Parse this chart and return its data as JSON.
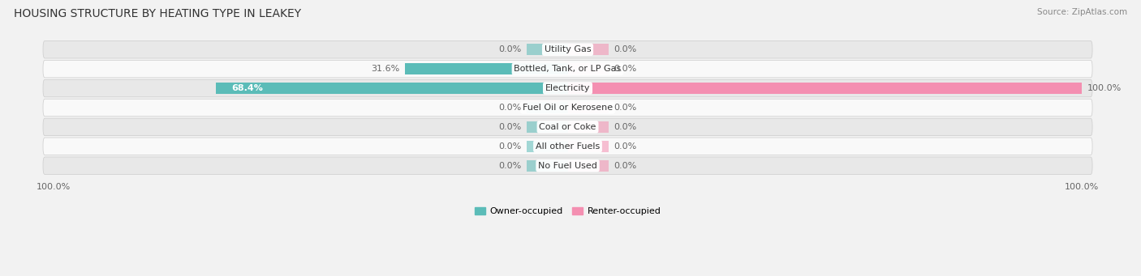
{
  "title": "HOUSING STRUCTURE BY HEATING TYPE IN LEAKEY",
  "source": "Source: ZipAtlas.com",
  "categories": [
    "Utility Gas",
    "Bottled, Tank, or LP Gas",
    "Electricity",
    "Fuel Oil or Kerosene",
    "Coal or Coke",
    "All other Fuels",
    "No Fuel Used"
  ],
  "owner_values": [
    0.0,
    31.6,
    68.4,
    0.0,
    0.0,
    0.0,
    0.0
  ],
  "renter_values": [
    0.0,
    0.0,
    100.0,
    0.0,
    0.0,
    0.0,
    0.0
  ],
  "owner_color": "#5bbcb8",
  "renter_color": "#f48fb1",
  "owner_label": "Owner-occupied",
  "renter_label": "Renter-occupied",
  "axis_max": 100.0,
  "bar_height": 0.6,
  "stub_value": 8.0,
  "background_color": "#f2f2f2",
  "row_bg_light": "#e8e8e8",
  "row_bg_white": "#f9f9f9",
  "label_color_dark": "#666666",
  "label_color_white": "#ffffff",
  "title_fontsize": 10,
  "source_fontsize": 7.5,
  "bar_label_fontsize": 8,
  "category_fontsize": 8,
  "axis_label_fontsize": 8
}
